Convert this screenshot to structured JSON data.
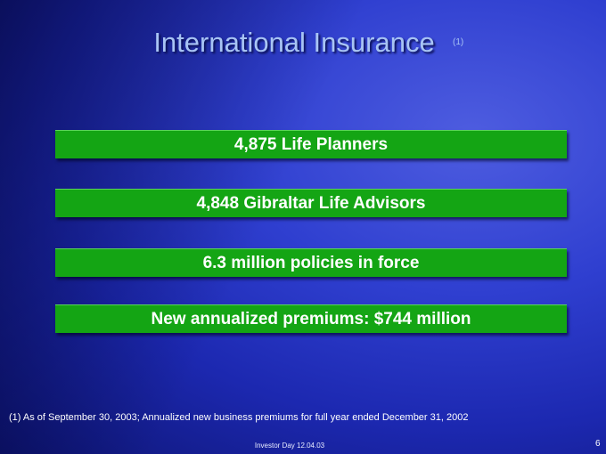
{
  "header": {
    "title": "International Insurance",
    "note_marker": "(1)"
  },
  "highlights": [
    "4,875 Life Planners",
    "4,848 Gibraltar Life Advisors",
    "6.3 million policies in force",
    "New annualized premiums: $744 million"
  ],
  "footnote": "(1) As of September 30, 2003; Annualized new business premiums for full year ended December 31, 2002",
  "footer": {
    "event": "Investor Day 12.04.03",
    "page": "6"
  }
}
